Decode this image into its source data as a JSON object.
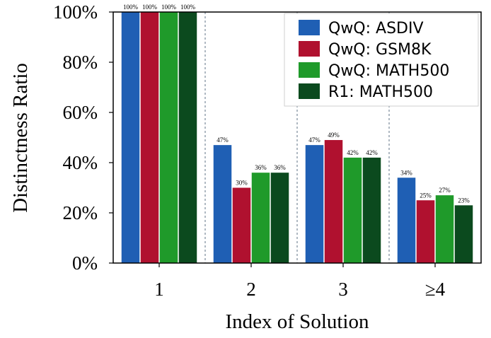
{
  "chart_data": {
    "type": "bar",
    "categories": [
      "1",
      "2",
      "3",
      "≥4"
    ],
    "series": [
      {
        "name": "QwQ: ASDIV",
        "color": "#1f5fb4",
        "values": [
          100,
          47,
          47,
          34
        ],
        "labels": [
          "100%",
          "47%",
          "47%",
          "34%"
        ]
      },
      {
        "name": "QwQ: GSM8K",
        "color": "#b0112f",
        "values": [
          100,
          30,
          49,
          25
        ],
        "labels": [
          "100%",
          "30%",
          "49%",
          "25%"
        ]
      },
      {
        "name": "QwQ: MATH500",
        "color": "#1f9a2a",
        "values": [
          100,
          36,
          42,
          27
        ],
        "labels": [
          "100%",
          "36%",
          "42%",
          "27%"
        ]
      },
      {
        "name": "R1: MATH500",
        "color": "#0b4a1e",
        "values": [
          100,
          36,
          42,
          23
        ],
        "labels": [
          "100%",
          "36%",
          "42%",
          "23%"
        ]
      }
    ],
    "xlabel": "Index of Solution",
    "ylabel": "Distinctness Ratio",
    "ylim": [
      0,
      100
    ],
    "yticks": [
      "0%",
      "20%",
      "40%",
      "60%",
      "80%",
      "100%"
    ],
    "legend_position": "top-right",
    "separators": "dashed vertical lines between groups"
  }
}
